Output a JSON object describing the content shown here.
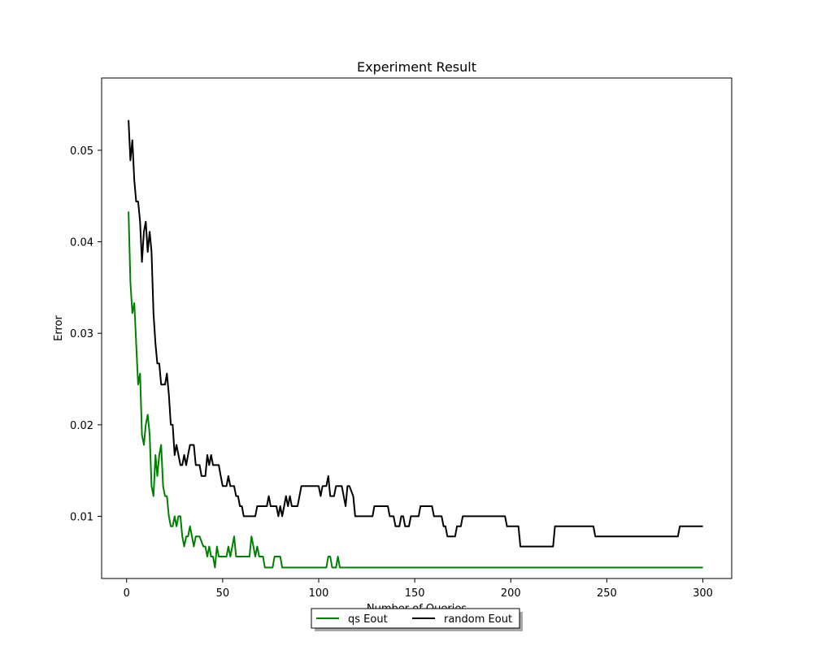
{
  "chart_data": {
    "type": "line",
    "title": "Experiment Result",
    "xlabel": "Number of Queries",
    "ylabel": "Error",
    "xlim": [
      -13,
      315
    ],
    "ylim": [
      0.0032,
      0.0579
    ],
    "xticks": [
      0,
      50,
      100,
      150,
      200,
      250,
      300
    ],
    "yticks": [
      0.01,
      0.02,
      0.03,
      0.04,
      0.05
    ],
    "ytick_labels": [
      "0.01",
      "0.02",
      "0.03",
      "0.04",
      "0.05"
    ],
    "grid": false,
    "legend_position": "bottom-center (below axes)",
    "series": [
      {
        "name": "qs Eout",
        "color": "#008000",
        "points": [
          [
            1,
            0.0433
          ],
          [
            2,
            0.0356
          ],
          [
            3,
            0.0322
          ],
          [
            4,
            0.0333
          ],
          [
            5,
            0.0289
          ],
          [
            6,
            0.0244
          ],
          [
            7,
            0.0256
          ],
          [
            8,
            0.0189
          ],
          [
            9,
            0.0178
          ],
          [
            10,
            0.02
          ],
          [
            11,
            0.0211
          ],
          [
            12,
            0.0189
          ],
          [
            13,
            0.0133
          ],
          [
            14,
            0.0122
          ],
          [
            15,
            0.0167
          ],
          [
            16,
            0.0144
          ],
          [
            17,
            0.0167
          ],
          [
            18,
            0.0178
          ],
          [
            19,
            0.0133
          ],
          [
            20,
            0.0122
          ],
          [
            21,
            0.0122
          ],
          [
            22,
            0.01
          ],
          [
            23,
            0.0089
          ],
          [
            24,
            0.0089
          ],
          [
            25,
            0.01
          ],
          [
            26,
            0.0089
          ],
          [
            27,
            0.01
          ],
          [
            28,
            0.01
          ],
          [
            29,
            0.0078
          ],
          [
            30,
            0.0067
          ],
          [
            31,
            0.0078
          ],
          [
            32,
            0.0078
          ],
          [
            33,
            0.0089
          ],
          [
            34,
            0.0078
          ],
          [
            35,
            0.0067
          ],
          [
            36,
            0.0078
          ],
          [
            38,
            0.0078
          ],
          [
            40,
            0.0067
          ],
          [
            41,
            0.0067
          ],
          [
            42,
            0.0056
          ],
          [
            43,
            0.0067
          ],
          [
            44,
            0.0056
          ],
          [
            45,
            0.0056
          ],
          [
            46,
            0.0044
          ],
          [
            47,
            0.0067
          ],
          [
            48,
            0.0056
          ],
          [
            52,
            0.0056
          ],
          [
            53,
            0.0067
          ],
          [
            54,
            0.0056
          ],
          [
            55,
            0.0067
          ],
          [
            56,
            0.0078
          ],
          [
            57,
            0.0056
          ],
          [
            64,
            0.0056
          ],
          [
            65,
            0.0078
          ],
          [
            66,
            0.0067
          ],
          [
            67,
            0.0056
          ],
          [
            68,
            0.0067
          ],
          [
            69,
            0.0056
          ],
          [
            71,
            0.0056
          ],
          [
            72,
            0.0044
          ],
          [
            76,
            0.0044
          ],
          [
            77,
            0.0056
          ],
          [
            80,
            0.0056
          ],
          [
            81,
            0.0044
          ],
          [
            104,
            0.0044
          ],
          [
            105,
            0.0056
          ],
          [
            106,
            0.0056
          ],
          [
            107,
            0.0044
          ],
          [
            109,
            0.0044
          ],
          [
            110,
            0.0056
          ],
          [
            111,
            0.0044
          ],
          [
            300,
            0.0044
          ]
        ]
      },
      {
        "name": "random Eout",
        "color": "#000000",
        "points": [
          [
            1,
            0.0533
          ],
          [
            2,
            0.0489
          ],
          [
            3,
            0.0511
          ],
          [
            4,
            0.0467
          ],
          [
            5,
            0.0444
          ],
          [
            6,
            0.0444
          ],
          [
            7,
            0.0422
          ],
          [
            8,
            0.0378
          ],
          [
            9,
            0.0411
          ],
          [
            10,
            0.0422
          ],
          [
            11,
            0.0389
          ],
          [
            12,
            0.0411
          ],
          [
            13,
            0.0389
          ],
          [
            14,
            0.0322
          ],
          [
            15,
            0.0289
          ],
          [
            16,
            0.0267
          ],
          [
            17,
            0.0267
          ],
          [
            18,
            0.0244
          ],
          [
            19,
            0.0244
          ],
          [
            20,
            0.0244
          ],
          [
            21,
            0.0256
          ],
          [
            22,
            0.0233
          ],
          [
            23,
            0.02
          ],
          [
            24,
            0.02
          ],
          [
            25,
            0.0167
          ],
          [
            26,
            0.0178
          ],
          [
            27,
            0.0167
          ],
          [
            28,
            0.0156
          ],
          [
            29,
            0.0156
          ],
          [
            30,
            0.0167
          ],
          [
            31,
            0.0156
          ],
          [
            32,
            0.0167
          ],
          [
            33,
            0.0178
          ],
          [
            35,
            0.0178
          ],
          [
            36,
            0.0156
          ],
          [
            38,
            0.0156
          ],
          [
            39,
            0.0144
          ],
          [
            41,
            0.0144
          ],
          [
            42,
            0.0167
          ],
          [
            43,
            0.0156
          ],
          [
            44,
            0.0167
          ],
          [
            45,
            0.0156
          ],
          [
            48,
            0.0156
          ],
          [
            49,
            0.0144
          ],
          [
            50,
            0.0133
          ],
          [
            52,
            0.0133
          ],
          [
            53,
            0.0144
          ],
          [
            54,
            0.0133
          ],
          [
            56,
            0.0133
          ],
          [
            57,
            0.0122
          ],
          [
            58,
            0.0122
          ],
          [
            59,
            0.0111
          ],
          [
            60,
            0.0111
          ],
          [
            61,
            0.01
          ],
          [
            67,
            0.01
          ],
          [
            68,
            0.0111
          ],
          [
            73,
            0.0111
          ],
          [
            74,
            0.0122
          ],
          [
            75,
            0.0111
          ],
          [
            78,
            0.0111
          ],
          [
            79,
            0.01
          ],
          [
            80,
            0.0111
          ],
          [
            81,
            0.01
          ],
          [
            82,
            0.0111
          ],
          [
            83,
            0.0122
          ],
          [
            84,
            0.0111
          ],
          [
            85,
            0.0122
          ],
          [
            86,
            0.0111
          ],
          [
            89,
            0.0111
          ],
          [
            91,
            0.0133
          ],
          [
            100,
            0.0133
          ],
          [
            101,
            0.0122
          ],
          [
            102,
            0.0133
          ],
          [
            104,
            0.0133
          ],
          [
            105,
            0.0144
          ],
          [
            106,
            0.0122
          ],
          [
            108,
            0.0122
          ],
          [
            109,
            0.0133
          ],
          [
            112,
            0.0133
          ],
          [
            114,
            0.0111
          ],
          [
            115,
            0.0133
          ],
          [
            116,
            0.0133
          ],
          [
            118,
            0.0122
          ],
          [
            119,
            0.01
          ],
          [
            128,
            0.01
          ],
          [
            129,
            0.0111
          ],
          [
            131,
            0.0111
          ],
          [
            136,
            0.0111
          ],
          [
            137,
            0.01
          ],
          [
            139,
            0.01
          ],
          [
            140,
            0.0089
          ],
          [
            142,
            0.0089
          ],
          [
            143,
            0.01
          ],
          [
            144,
            0.01
          ],
          [
            145,
            0.0089
          ],
          [
            147,
            0.0089
          ],
          [
            148,
            0.01
          ],
          [
            152,
            0.01
          ],
          [
            153,
            0.0111
          ],
          [
            159,
            0.0111
          ],
          [
            160,
            0.01
          ],
          [
            164,
            0.01
          ],
          [
            165,
            0.0089
          ],
          [
            166,
            0.0089
          ],
          [
            167,
            0.0078
          ],
          [
            171,
            0.0078
          ],
          [
            172,
            0.0089
          ],
          [
            174,
            0.0089
          ],
          [
            175,
            0.01
          ],
          [
            197,
            0.01
          ],
          [
            198,
            0.0089
          ],
          [
            204,
            0.0089
          ],
          [
            205,
            0.0067
          ],
          [
            222,
            0.0067
          ],
          [
            223,
            0.0089
          ],
          [
            243,
            0.0089
          ],
          [
            244,
            0.0078
          ],
          [
            287,
            0.0078
          ],
          [
            288,
            0.0089
          ],
          [
            300,
            0.0089
          ]
        ]
      }
    ]
  }
}
